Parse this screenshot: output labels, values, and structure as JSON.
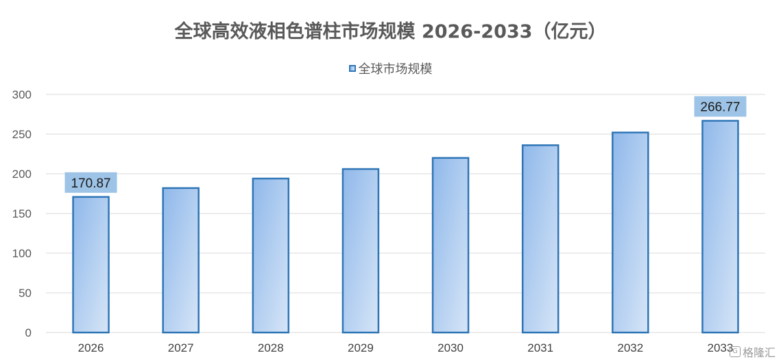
{
  "chart_data": {
    "type": "bar",
    "title": "全球高效液相色谱柱市场规模 2026-2033（亿元）",
    "categories": [
      "2026",
      "2027",
      "2028",
      "2029",
      "2030",
      "2031",
      "2032",
      "2033"
    ],
    "series": [
      {
        "name": "全球市场规模",
        "values": [
          170.87,
          182,
          194,
          206,
          220,
          236,
          252,
          266.77
        ],
        "color": "#2e75b6",
        "fill_gradient": [
          "#8fb8ea",
          "#d6e5f7"
        ]
      }
    ],
    "data_labels": [
      {
        "category": "2026",
        "text": "170.87"
      },
      {
        "category": "2033",
        "text": "266.77"
      }
    ],
    "data_label_bg": "#9dc3e6",
    "ylim": [
      0,
      300
    ],
    "yticks": [
      0,
      50,
      100,
      150,
      200,
      250,
      300
    ],
    "grid": true,
    "legend_position": "top-center",
    "xlabel": "",
    "ylabel": ""
  },
  "watermark": {
    "icon": "gelonghui-logo-icon",
    "text": "格隆汇"
  }
}
